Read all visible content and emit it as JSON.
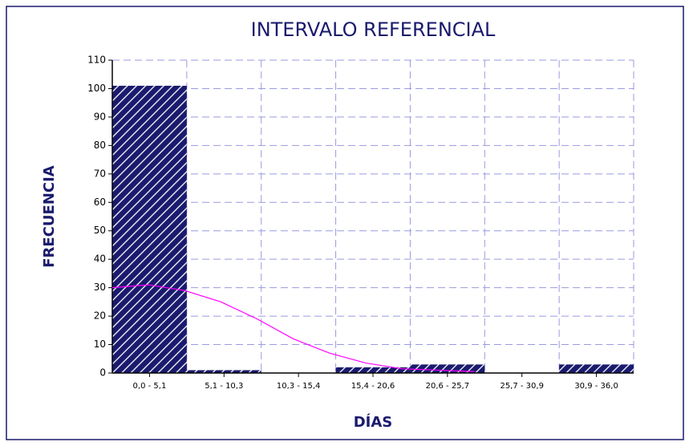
{
  "chart_data": {
    "type": "histogram",
    "title": "INTERVALO REFERENCIAL",
    "xlabel": "DÍAS",
    "ylabel": "FRECUENCIA",
    "categories": [
      "0,0 - 5,1",
      "5,1 - 10,3",
      "10,3 - 15,4",
      "15,4 - 20,6",
      "20,6 - 25,7",
      "25,7 - 30,9",
      "30,9 - 36,0"
    ],
    "values": [
      101,
      1,
      0,
      2,
      3,
      0,
      3
    ],
    "color": "#1a1a6e",
    "ylim": [
      0,
      110
    ],
    "yticks": [
      0,
      10,
      20,
      30,
      40,
      50,
      60,
      70,
      80,
      90,
      100,
      110
    ],
    "grid": true,
    "xlim": [
      0,
      36
    ],
    "curve": {
      "color": "#ff00ff",
      "x": [
        0,
        2.5,
        5,
        7.5,
        10,
        12.5,
        15,
        17.5,
        20,
        22.5,
        25
      ],
      "values": [
        30,
        31,
        29,
        25,
        19,
        12,
        7,
        3.5,
        1.5,
        1,
        0.5
      ]
    }
  }
}
